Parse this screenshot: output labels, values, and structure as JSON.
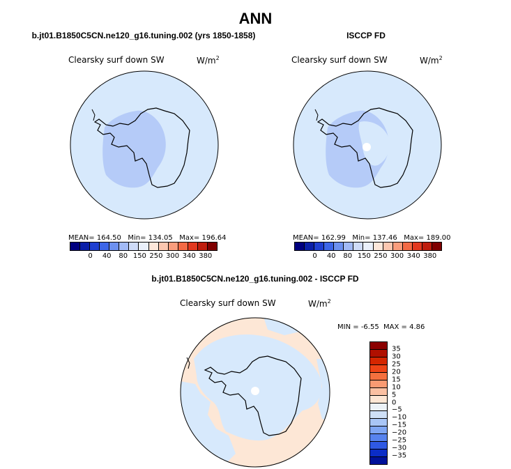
{
  "title": "ANN",
  "panels": {
    "model": {
      "title": "b.jt01.B1850C5CN.ne120_g16.tuning.002 (yrs 1850-1858)",
      "variable": "Clearsky surf down SW",
      "units_base": "W/m",
      "units_exp": "2",
      "mean_label": "MEAN=",
      "mean": "164.50",
      "min_label": "Min=",
      "min": "134.05",
      "max_label": "Max=",
      "max": "196.64"
    },
    "obs": {
      "title": "ISCCP FD",
      "variable": "Clearsky surf down SW",
      "units_base": "W/m",
      "units_exp": "2",
      "mean_label": "MEAN=",
      "mean": "162.99",
      "min_label": "Min=",
      "min": "137.46",
      "max_label": "Max=",
      "max": "189.00"
    },
    "diff": {
      "title": "b.jt01.B1850C5CN.ne120_g16.tuning.002 - ISCCP FD",
      "variable": "Clearsky surf down SW",
      "units_base": "W/m",
      "units_exp": "2",
      "min_label": "MIN =",
      "min": "-6.55",
      "max_label": "MAX =",
      "max": "4.86"
    }
  },
  "colorbar_top": {
    "ticks": [
      "0",
      "40",
      "80",
      "150",
      "250",
      "300",
      "340",
      "380"
    ],
    "colors": [
      "#00007f",
      "#0a1fa8",
      "#1f3fd1",
      "#3d66e8",
      "#6d91f0",
      "#a2baf6",
      "#cfdcf9",
      "#eaf0fb",
      "#fde7da",
      "#fcc7b0",
      "#f99d7d",
      "#f36a45",
      "#e2391f",
      "#bf1d0d",
      "#7f0000"
    ]
  },
  "colorbar_diff": {
    "ticks": [
      "35",
      "30",
      "25",
      "20",
      "15",
      "10",
      "5",
      "0",
      "−5",
      "−10",
      "−15",
      "−20",
      "−25",
      "−30",
      "−35"
    ],
    "colors": [
      "#8b0000",
      "#b01000",
      "#d42600",
      "#ee4416",
      "#f5703e",
      "#f99a72",
      "#fbc0a2",
      "#fde6d4",
      "#ecf2f7",
      "#cfe0f7",
      "#a9c6f6",
      "#7fa6f3",
      "#5783ee",
      "#2f59e3",
      "#0b2dc6",
      "#00129a"
    ]
  },
  "map_fills": {
    "model_ocean": "#d7e9fc",
    "model_land": "#b5cbf8",
    "obs_ocean": "#d7e9fc",
    "obs_land": "#b5cbf8",
    "obs_interior": "#d7e9fc",
    "diff_ocean": "#fde7d6",
    "diff_neg": "#d7e9fc"
  }
}
